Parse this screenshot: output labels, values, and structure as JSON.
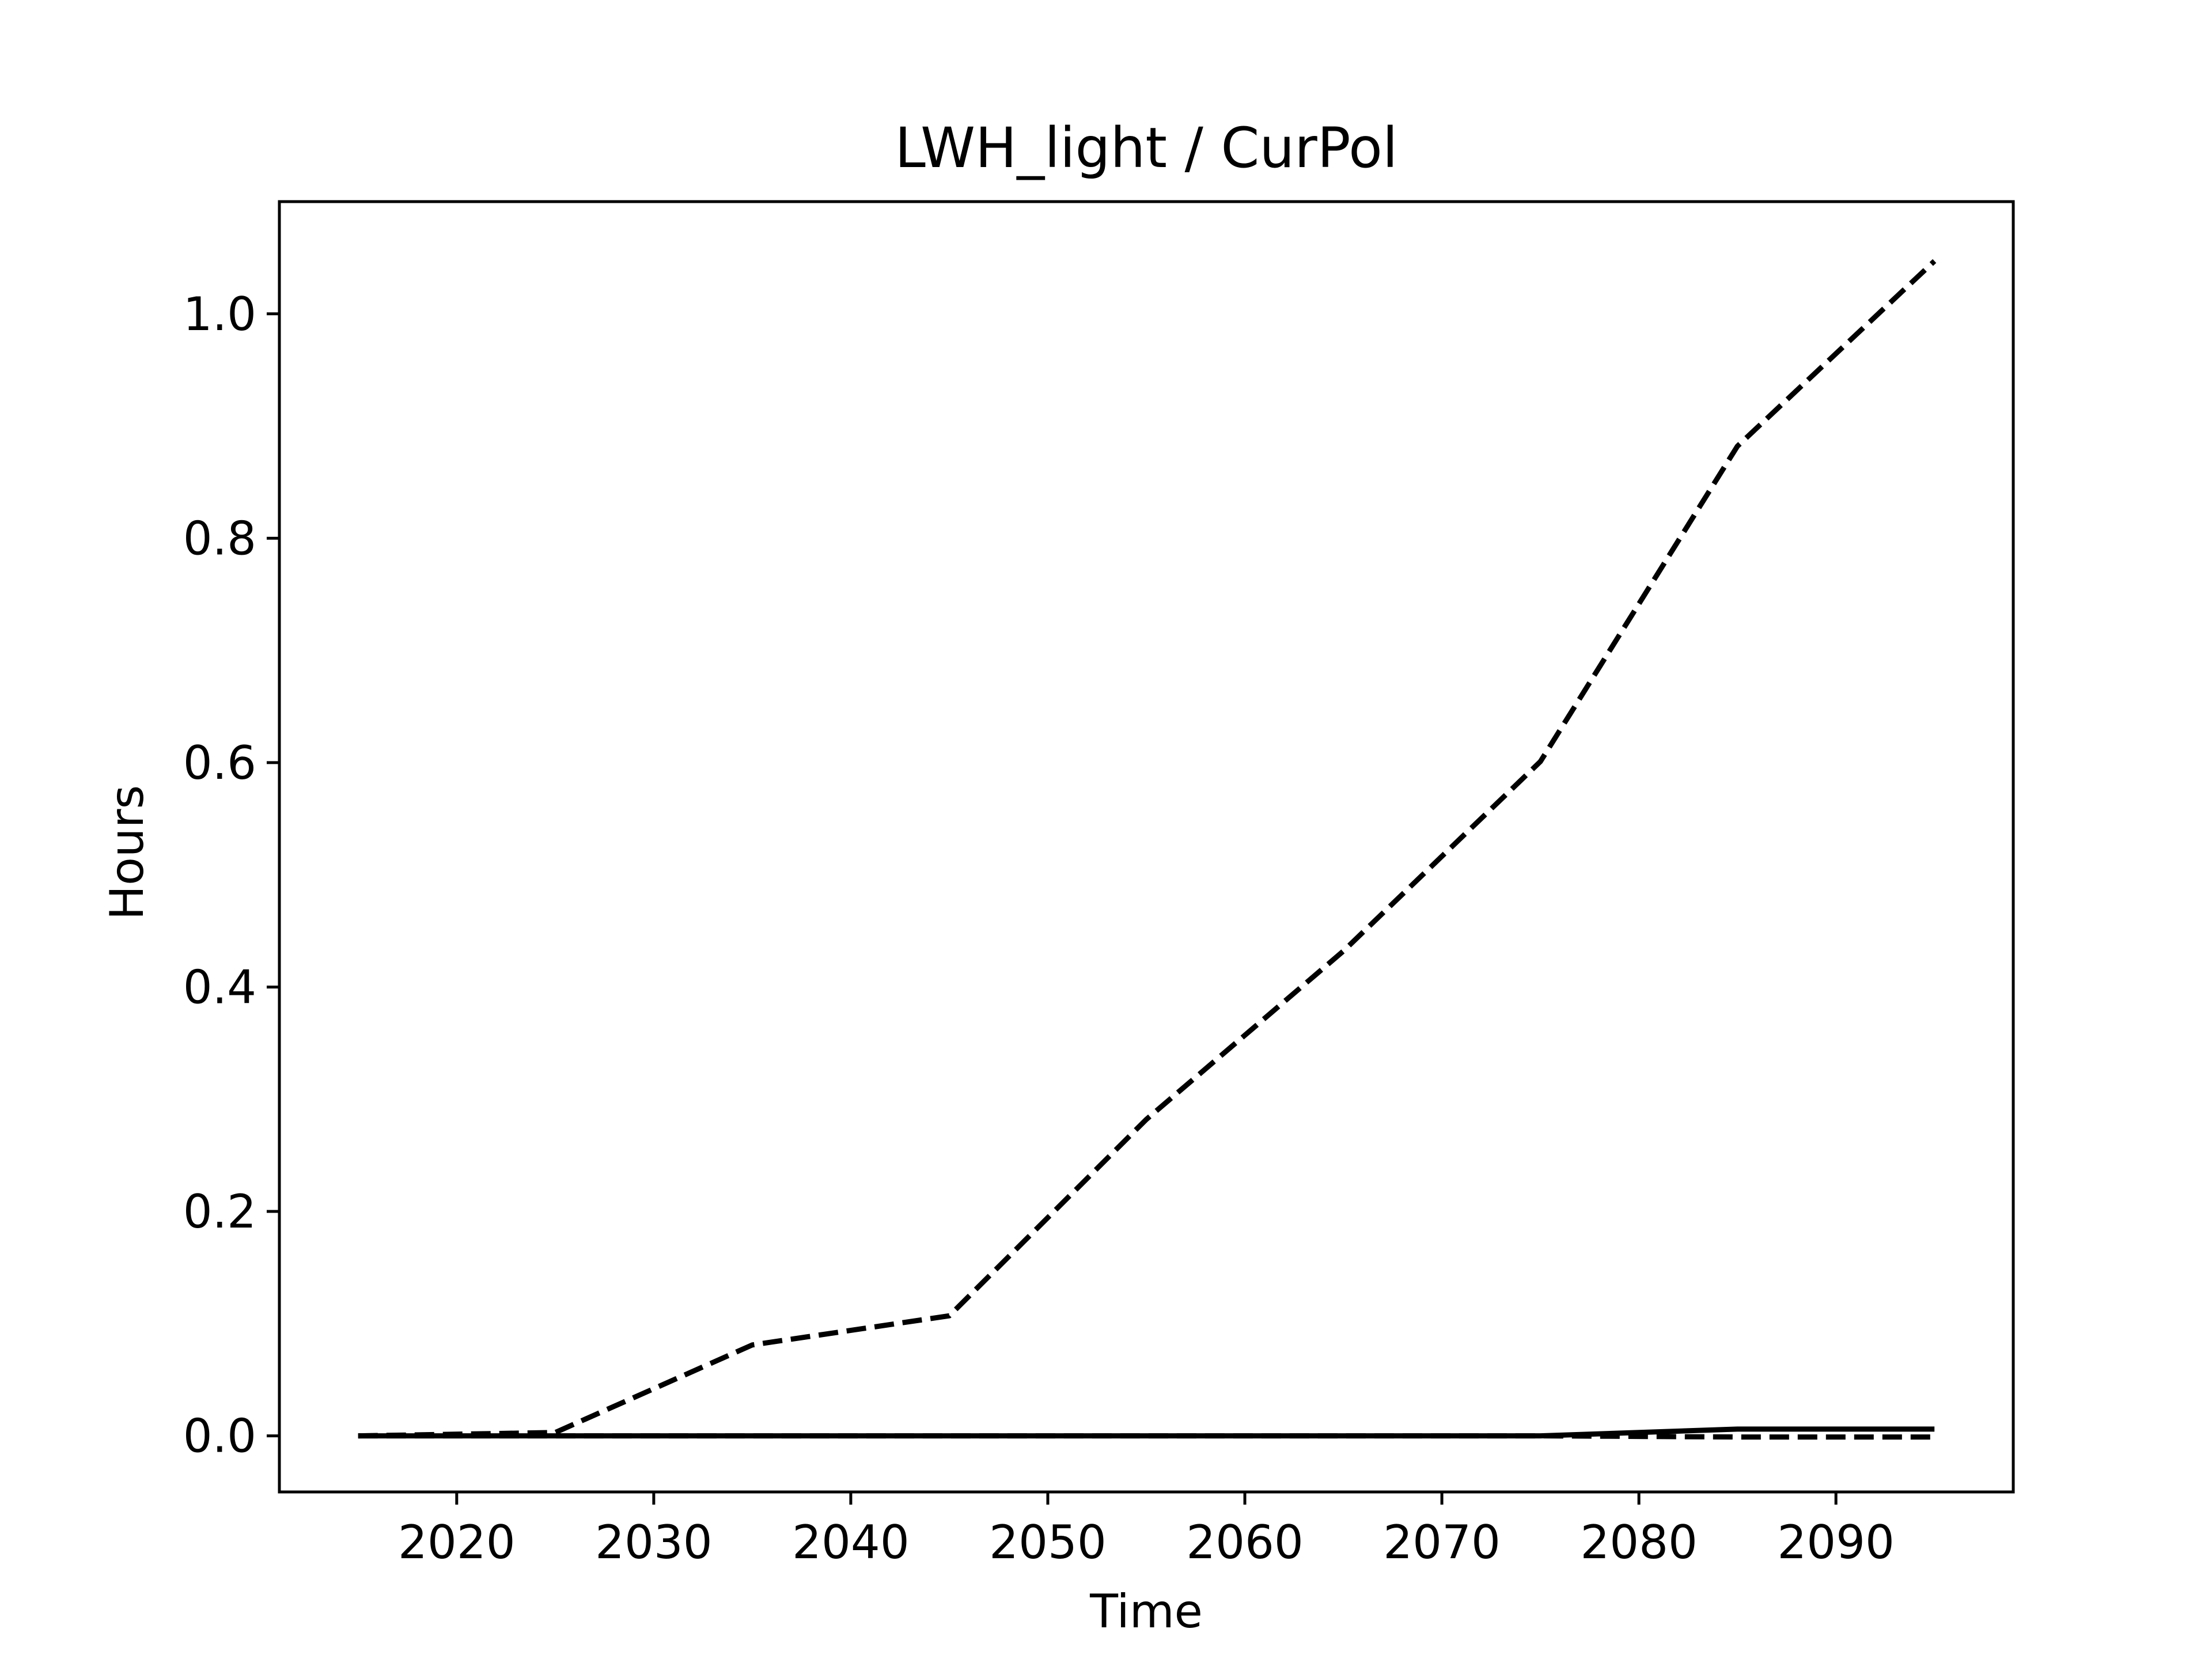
{
  "chart_data": {
    "type": "line",
    "title": "LWH_light / CurPol",
    "xlabel": "Time",
    "ylabel": "Hours",
    "xlim": [
      2011,
      2099
    ],
    "ylim": [
      -0.05,
      1.1
    ],
    "xticks": [
      2020,
      2030,
      2040,
      2050,
      2060,
      2070,
      2080,
      2090
    ],
    "yticks": [
      0.0,
      0.2,
      0.4,
      0.6,
      0.8,
      1.0
    ],
    "ytick_labels": [
      "0.0",
      "0.2",
      "0.4",
      "0.6",
      "0.8",
      "1.0"
    ],
    "grid": false,
    "legend": false,
    "series": [
      {
        "style": "dashed",
        "color": "#000000",
        "x": [
          2015,
          2025,
          2035,
          2045,
          2055,
          2065,
          2075,
          2085,
          2095
        ],
        "y": [
          0.0,
          0.003,
          0.081,
          0.107,
          0.282,
          0.432,
          0.601,
          0.882,
          1.047
        ]
      },
      {
        "style": "solid",
        "color": "#000000",
        "x": [
          2015,
          2025,
          2035,
          2045,
          2055,
          2065,
          2075,
          2085,
          2095
        ],
        "y": [
          0.0,
          0.0,
          0.0,
          0.0,
          0.0,
          0.0,
          0.0,
          0.006,
          0.006
        ]
      },
      {
        "style": "dashed",
        "color": "#000000",
        "x": [
          2015,
          2025,
          2035,
          2045,
          2055,
          2065,
          2075,
          2085,
          2095
        ],
        "y": [
          0.0,
          0.0,
          0.0,
          0.0,
          0.0,
          0.0,
          0.0,
          -0.001,
          -0.001
        ]
      }
    ]
  }
}
